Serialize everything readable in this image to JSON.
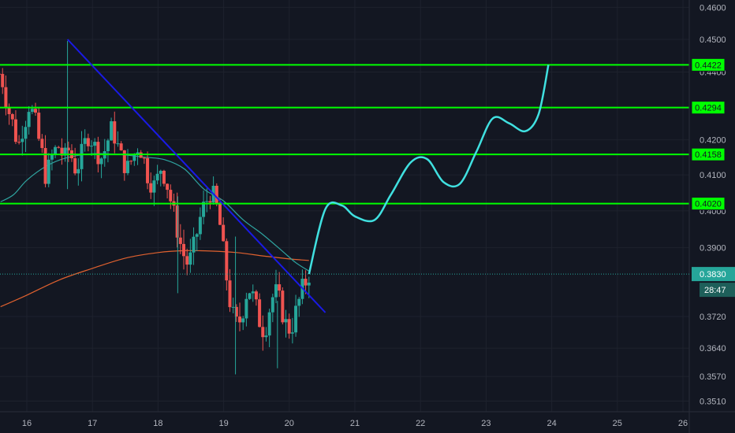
{
  "chart_data": {
    "type": "candlestick",
    "y_axis": {
      "ticks": [
        "0.4600",
        "0.4500",
        "0.4400",
        "0.4200",
        "0.4100",
        "0.4000",
        "0.3900",
        "0.3720",
        "0.3640",
        "0.3570",
        "0.3510"
      ],
      "scale": "log",
      "position": "right"
    },
    "x_axis": {
      "ticks": [
        "16",
        "17",
        "18",
        "19",
        "20",
        "21",
        "22",
        "23",
        "24",
        "25",
        "26"
      ]
    },
    "horizontal_levels": [
      {
        "label": "0.4422",
        "value": 0.4422
      },
      {
        "label": "0.4294",
        "value": 0.4294
      },
      {
        "label": "0.4158",
        "value": 0.4158
      },
      {
        "label": "0.4020",
        "value": 0.402
      }
    ],
    "last_price": {
      "label": "0.3830",
      "value": 0.383,
      "countdown": "28:47"
    },
    "trendline": [
      [
        16.62,
        0.45
      ],
      [
        20.55,
        0.373
      ]
    ],
    "projection_path": [
      [
        20.3,
        0.383
      ],
      [
        20.55,
        0.4005
      ],
      [
        20.8,
        0.4015
      ],
      [
        21.0,
        0.3985
      ],
      [
        21.3,
        0.3975
      ],
      [
        21.55,
        0.4045
      ],
      [
        21.85,
        0.4135
      ],
      [
        22.1,
        0.4145
      ],
      [
        22.35,
        0.408
      ],
      [
        22.6,
        0.4075
      ],
      [
        22.85,
        0.4165
      ],
      [
        23.1,
        0.4262
      ],
      [
        23.35,
        0.4248
      ],
      [
        23.6,
        0.4225
      ],
      [
        23.8,
        0.4275
      ],
      [
        23.95,
        0.4422
      ]
    ],
    "ma_slow": [
      [
        15.6,
        0.3745
      ],
      [
        16.0,
        0.3775
      ],
      [
        16.5,
        0.3815
      ],
      [
        17.0,
        0.3845
      ],
      [
        17.5,
        0.3872
      ],
      [
        18.0,
        0.3887
      ],
      [
        18.4,
        0.3892
      ],
      [
        18.8,
        0.3891
      ],
      [
        19.2,
        0.3887
      ],
      [
        19.6,
        0.3878
      ],
      [
        20.0,
        0.387
      ],
      [
        20.3,
        0.3866
      ]
    ],
    "ma_fast": [
      [
        15.6,
        0.4025
      ],
      [
        15.8,
        0.4045
      ],
      [
        16.0,
        0.4085
      ],
      [
        16.3,
        0.4125
      ],
      [
        16.6,
        0.4148
      ],
      [
        17.0,
        0.416
      ],
      [
        17.4,
        0.4158
      ],
      [
        17.8,
        0.415
      ],
      [
        18.1,
        0.4143
      ],
      [
        18.4,
        0.4117
      ],
      [
        18.7,
        0.406
      ],
      [
        19.0,
        0.4027
      ],
      [
        19.3,
        0.3975
      ],
      [
        19.6,
        0.3935
      ],
      [
        19.9,
        0.389
      ],
      [
        20.1,
        0.386
      ],
      [
        20.3,
        0.3838
      ]
    ],
    "candles_shape": [
      0.4395,
      0.437,
      0.432,
      0.428,
      0.425,
      0.421,
      0.419,
      0.423,
      0.426,
      0.43,
      0.428,
      0.425,
      0.42,
      0.416,
      0.41,
      0.412,
      0.415,
      0.417,
      0.418,
      0.416,
      0.415,
      0.417,
      0.415,
      0.412,
      0.413,
      0.416,
      0.419,
      0.421,
      0.42,
      0.418,
      0.416,
      0.415,
      0.417,
      0.42,
      0.423,
      0.421,
      0.418,
      0.415,
      0.413,
      0.412,
      0.414,
      0.416,
      0.418,
      0.417,
      0.414,
      0.41,
      0.408,
      0.407,
      0.409,
      0.412,
      0.41,
      0.407,
      0.403,
      0.399,
      0.395,
      0.391,
      0.388,
      0.386,
      0.387,
      0.39,
      0.394,
      0.398,
      0.401,
      0.403,
      0.405,
      0.404,
      0.401,
      0.396,
      0.389,
      0.382,
      0.376,
      0.372,
      0.37,
      0.371,
      0.374,
      0.378,
      0.379,
      0.377,
      0.374,
      0.371,
      0.369,
      0.37,
      0.374,
      0.377,
      0.378,
      0.376,
      0.373,
      0.37,
      0.369,
      0.37,
      0.373,
      0.376,
      0.379,
      0.381,
      0.383
    ],
    "colors": {
      "background": "#131722",
      "grid": "#1e222d",
      "up": "#26a69a",
      "down": "#ef5350",
      "level_line": "#00ff00",
      "trendline": "#1a1ae6",
      "projection": "#40e0e0",
      "ma_slow": "#e0612f",
      "ma_fast": "#2fa4a0",
      "last_price": "#26a69a",
      "axis_text": "#b2b5be"
    }
  }
}
